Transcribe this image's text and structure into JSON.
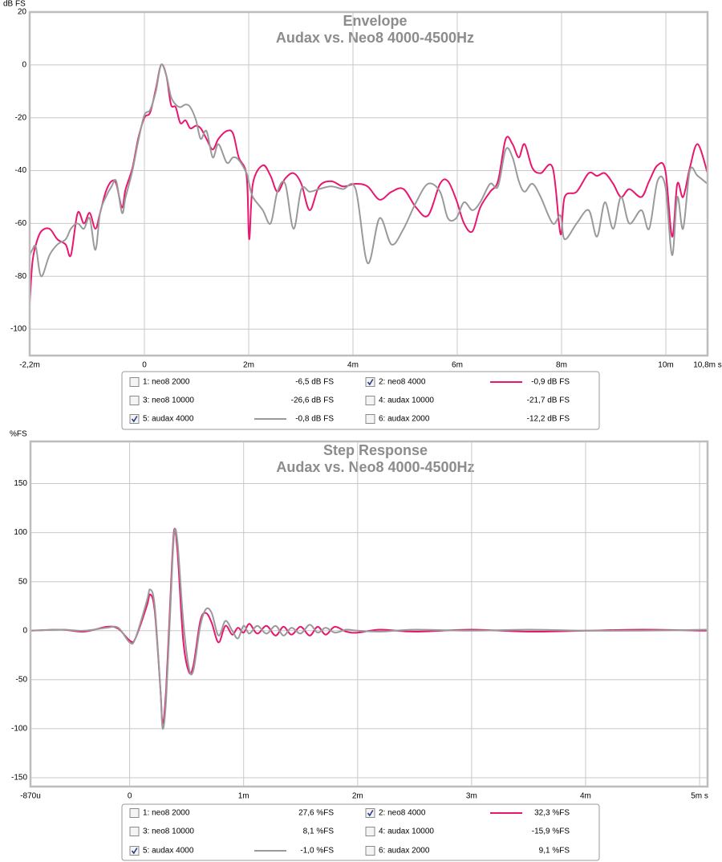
{
  "chart_data": [
    {
      "type": "line",
      "title": "Envelope",
      "subtitle": "Audax vs. Neo8 4000-4500Hz",
      "ylabel": "dB FS",
      "xlim": [
        -2.2,
        10.8
      ],
      "xticks": [
        {
          "value": -2.2,
          "label": "-2,2m"
        },
        0,
        {
          "value": 2,
          "label": "2m"
        },
        {
          "value": 4,
          "label": "4m"
        },
        {
          "value": 6,
          "label": "6m"
        },
        {
          "value": 8,
          "label": "8m"
        },
        {
          "value": 10,
          "label": "10m"
        },
        {
          "value": 10.8,
          "label": "10,8m s"
        }
      ],
      "ylim": [
        -110,
        20
      ],
      "yticks": [
        20,
        0,
        -20,
        -40,
        -60,
        -80,
        -100
      ],
      "grid": true,
      "x": [
        -2.2,
        -2.15,
        -2.08,
        -1.98,
        -1.82,
        -1.67,
        -1.51,
        -1.41,
        -1.28,
        -1.16,
        -1.05,
        -0.94,
        -0.85,
        -0.74,
        -0.63,
        -0.54,
        -0.43,
        -0.36,
        -0.23,
        -0.12,
        0,
        0.11,
        0.22,
        0.32,
        0.42,
        0.51,
        0.6,
        0.69,
        0.79,
        0.88,
        0.99,
        1.08,
        1.19,
        1.31,
        1.42,
        1.58,
        1.7,
        1.81,
        1.96,
        2.01,
        2.08,
        2.27,
        2.42,
        2.55,
        2.7,
        2.86,
        3.01,
        3.17,
        3.35,
        3.58,
        3.81,
        4.05,
        4.28,
        4.51,
        4.74,
        4.97,
        5.21,
        5.44,
        5.67,
        5.82,
        5.98,
        6.13,
        6.29,
        6.44,
        6.63,
        6.78,
        6.93,
        7.06,
        7.18,
        7.29,
        7.44,
        7.6,
        7.83,
        7.98,
        8.06,
        8.29,
        8.52,
        8.68,
        8.83,
        8.99,
        9.14,
        9.3,
        9.53,
        9.68,
        9.84,
        9.99,
        10.12,
        10.22,
        10.33,
        10.46,
        10.61,
        10.8
      ],
      "series": [
        {
          "name": "1: neo8 2000",
          "readout": "-6,5 dB FS",
          "checked": false,
          "color": "#e0488c"
        },
        {
          "name": "2: neo8 4000",
          "readout": "-0,9 dB FS",
          "checked": true,
          "color": "#e8176f",
          "values": [
            -91,
            -75,
            -68,
            -63,
            -62,
            -66,
            -68,
            -72,
            -56,
            -60,
            -56,
            -62,
            -56,
            -48,
            -44,
            -45,
            -54,
            -47,
            -39,
            -28,
            -20,
            -18,
            -9,
            0,
            -4,
            -15,
            -16,
            -22,
            -21,
            -24,
            -23,
            -24,
            -28,
            -32,
            -28,
            -25,
            -26,
            -35,
            -42,
            -66,
            -45,
            -38,
            -42,
            -48,
            -43,
            -41,
            -45,
            -55,
            -46,
            -44,
            -46,
            -45,
            -46,
            -51,
            -48,
            -47,
            -54,
            -57,
            -45,
            -44,
            -51,
            -60,
            -63,
            -54,
            -48,
            -44,
            -28,
            -30,
            -35,
            -30,
            -39,
            -41,
            -39,
            -64,
            -50,
            -48,
            -41,
            -42,
            -41,
            -45,
            -50,
            -47,
            -50,
            -44,
            -38,
            -40,
            -65,
            -45,
            -50,
            -39,
            -30,
            -41
          ]
        },
        {
          "name": "3: neo8 10000",
          "readout": "-26,6 dB FS",
          "checked": false,
          "color": "#c8005a"
        },
        {
          "name": "4: audax 10000",
          "readout": "-21,7 dB FS",
          "checked": false,
          "color": "#8c8c8c"
        },
        {
          "name": "5: audax 4000",
          "readout": "-0,8 dB FS",
          "checked": true,
          "color": "#9a9a9a",
          "values": [
            -72,
            -70,
            -69,
            -80,
            -72,
            -68,
            -66,
            -62,
            -60,
            -62,
            -58,
            -70,
            -56,
            -50,
            -46,
            -44,
            -56,
            -50,
            -40,
            -29,
            -19,
            -17,
            -10,
            0,
            -4,
            -12,
            -15,
            -16,
            -15,
            -16,
            -21,
            -28,
            -25,
            -35,
            -30,
            -37,
            -35,
            -36,
            -41,
            -45,
            -50,
            -55,
            -60,
            -48,
            -45,
            -62,
            -47,
            -48,
            -47,
            -46,
            -47,
            -47,
            -75,
            -58,
            -68,
            -62,
            -52,
            -45,
            -48,
            -58,
            -58,
            -52,
            -55,
            -52,
            -45,
            -46,
            -32,
            -35,
            -44,
            -48,
            -45,
            -50,
            -60,
            -57,
            -66,
            -60,
            -55,
            -65,
            -52,
            -62,
            -50,
            -60,
            -55,
            -62,
            -44,
            -46,
            -72,
            -50,
            -62,
            -40,
            -42,
            -45
          ]
        },
        {
          "name": "6: audax 2000",
          "readout": "-12,2 dB FS",
          "checked": false,
          "color": "#8c8c8c"
        }
      ]
    },
    {
      "type": "line",
      "title": "Step Response",
      "subtitle": "Audax vs. Neo8 4000-4500Hz",
      "ylabel": "%FS",
      "xlim": [
        -0.87,
        5.07
      ],
      "xticks": [
        {
          "value": -0.87,
          "label": "-870u"
        },
        0,
        {
          "value": 1,
          "label": "1m"
        },
        {
          "value": 2,
          "label": "2m"
        },
        {
          "value": 3,
          "label": "3m"
        },
        {
          "value": 4,
          "label": "4m"
        },
        {
          "value": 5,
          "label": "5m s"
        }
      ],
      "ylim": [
        -159,
        193
      ],
      "yticks": [
        150,
        100,
        50,
        0,
        -50,
        -100,
        -150
      ],
      "grid": true,
      "x": [
        -0.87,
        -0.6,
        -0.4,
        -0.2,
        -0.1,
        0,
        0.05,
        0.15,
        0.18,
        0.22,
        0.27,
        0.29,
        0.32,
        0.36,
        0.39,
        0.42,
        0.47,
        0.52,
        0.56,
        0.62,
        0.67,
        0.72,
        0.78,
        0.84,
        0.9,
        0.95,
        1,
        1.05,
        1.12,
        1.2,
        1.28,
        1.35,
        1.42,
        1.5,
        1.58,
        1.65,
        1.72,
        1.8,
        1.9,
        2,
        2.2,
        2.5,
        3,
        3.5,
        4,
        4.5,
        5.07
      ],
      "series": [
        {
          "name": "1: neo8 2000",
          "readout": "27,6 %FS",
          "checked": false,
          "color": "#e0488c"
        },
        {
          "name": "2: neo8 4000",
          "readout": "32,3 %FS",
          "checked": true,
          "color": "#e8176f",
          "values": [
            0,
            1,
            -1,
            4,
            2,
            -10,
            -8,
            25,
            37,
            20,
            -60,
            -95,
            -60,
            40,
            102,
            80,
            -10,
            -42,
            -35,
            10,
            18,
            8,
            -12,
            5,
            -4,
            3,
            -2,
            7,
            -3,
            5,
            -5,
            4,
            -4,
            4,
            -5,
            4,
            -4,
            4,
            -1,
            -2,
            1,
            -1,
            1,
            -1,
            0,
            1,
            0
          ]
        },
        {
          "name": "3: neo8 10000",
          "readout": "8,1 %FS",
          "checked": false,
          "color": "#c8005a"
        },
        {
          "name": "4: audax 10000",
          "readout": "-15,9 %FS",
          "checked": false,
          "color": "#8c8c8c"
        },
        {
          "name": "5: audax 4000",
          "readout": "-1,0 %FS",
          "checked": true,
          "color": "#9a9a9a",
          "values": [
            0,
            1,
            0,
            3,
            3,
            -12,
            -8,
            30,
            42,
            25,
            -60,
            -100,
            -70,
            30,
            98,
            90,
            10,
            -38,
            -40,
            5,
            22,
            18,
            -5,
            10,
            0,
            -8,
            5,
            -3,
            5,
            -3,
            5,
            -5,
            3,
            -3,
            6,
            -2,
            3,
            -2,
            1,
            0,
            -1,
            1,
            0,
            1,
            0,
            0,
            1
          ]
        },
        {
          "name": "6: audax 2000",
          "readout": "9,1 %FS",
          "checked": false,
          "color": "#8c8c8c"
        }
      ]
    }
  ]
}
